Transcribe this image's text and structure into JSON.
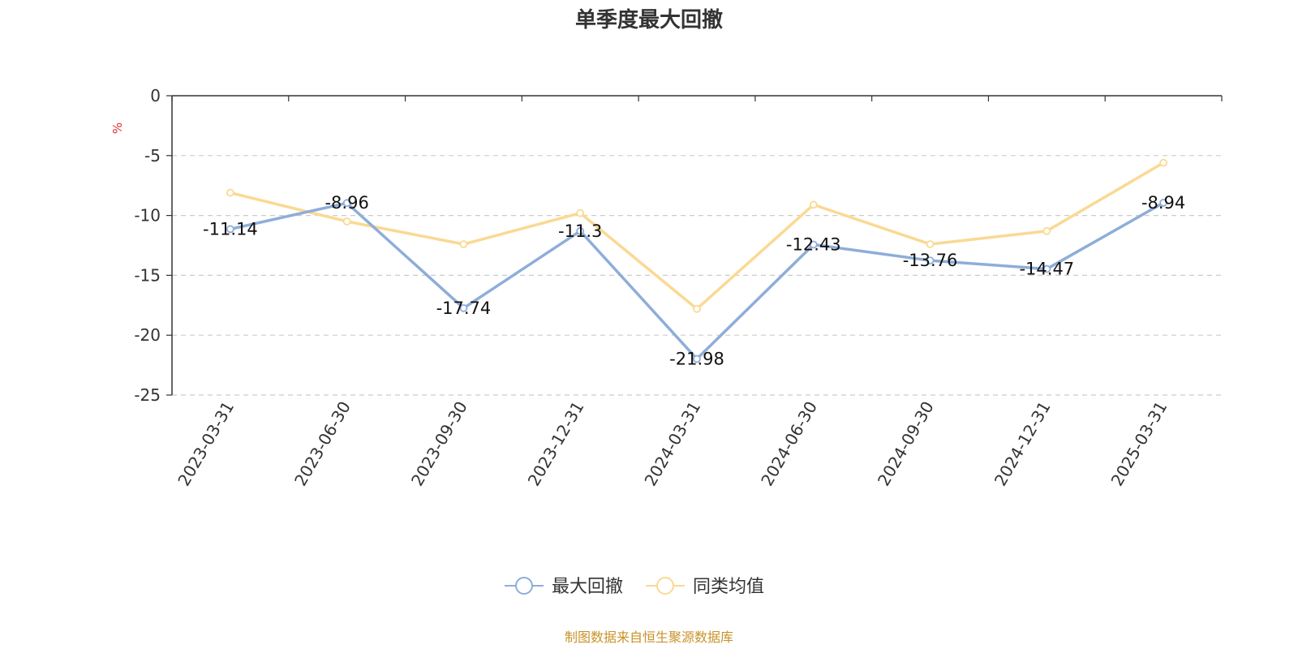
{
  "chart_data": {
    "type": "line",
    "title": "单季度最大回撤",
    "ylabel": "%",
    "ylim": [
      -25,
      0
    ],
    "yticks": [
      0,
      -5,
      -10,
      -15,
      -20,
      -25
    ],
    "grid": true,
    "legend_position": "bottom-center",
    "categories": [
      "2023-03-31",
      "2023-06-30",
      "2023-09-30",
      "2023-12-31",
      "2024-03-31",
      "2024-06-30",
      "2024-09-30",
      "2024-12-31",
      "2025-03-31"
    ],
    "series": [
      {
        "name": "最大回撤",
        "color": "#8eadd9",
        "show_labels": true,
        "values": [
          -11.14,
          -8.96,
          -17.74,
          -11.3,
          -21.98,
          -12.43,
          -13.76,
          -14.47,
          -8.94
        ]
      },
      {
        "name": "同类均值",
        "color": "#fad993",
        "show_labels": false,
        "values": [
          -8.1,
          -10.5,
          -12.4,
          -9.8,
          -17.8,
          -9.1,
          -12.4,
          -11.3,
          -5.6
        ]
      }
    ]
  },
  "source": {
    "text": "制图数据来自恒生聚源数据库",
    "color": "#c8932a"
  },
  "unit_color": "#e03030"
}
